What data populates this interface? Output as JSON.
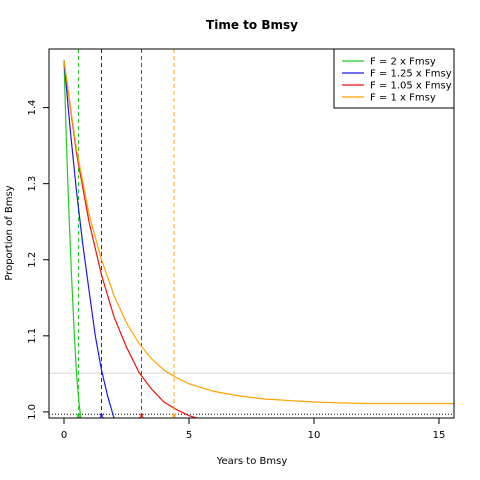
{
  "chart_data": {
    "type": "line",
    "title": "Time to Bmsy",
    "xlabel": "Years to Bmsy",
    "ylabel": "Proportion of Bmsy",
    "xlim": [
      -0.6,
      15.6
    ],
    "ylim": [
      0.992,
      1.477
    ],
    "x_ticks": [
      0,
      5,
      10,
      15
    ],
    "x_tick_labels": [
      "0",
      "5",
      "10",
      "15"
    ],
    "y_ticks": [
      1.0,
      1.1,
      1.2,
      1.3,
      1.4
    ],
    "y_tick_labels": [
      "1.0",
      "1.1",
      "1.2",
      "1.3",
      "1.4"
    ],
    "grid": false,
    "legend_position": "top-right",
    "series": [
      {
        "name": "F = 2 x Fmsy",
        "color": "#22cc22",
        "x": [
          0,
          0.1,
          0.2,
          0.3,
          0.4,
          0.5,
          0.6,
          0.67
        ],
        "y": [
          1.462,
          1.35,
          1.26,
          1.18,
          1.11,
          1.05,
          1.012,
          0.992
        ],
        "marker_x": 0.58
      },
      {
        "name": "F = 1.25 x Fmsy",
        "color": "#1a1aee",
        "x": [
          0,
          0.25,
          0.5,
          0.75,
          1.0,
          1.25,
          1.5,
          1.75,
          2.0
        ],
        "y": [
          1.462,
          1.37,
          1.29,
          1.22,
          1.16,
          1.1,
          1.055,
          1.02,
          0.992
        ],
        "marker_x": 1.5
      },
      {
        "name": "F = 1.05 x Fmsy",
        "color": "#ee1111",
        "x": [
          0,
          0.5,
          1.0,
          1.5,
          2.0,
          2.5,
          3.0,
          3.5,
          4.0,
          4.5,
          5.0,
          5.3
        ],
        "y": [
          1.462,
          1.34,
          1.25,
          1.18,
          1.125,
          1.085,
          1.052,
          1.03,
          1.013,
          1.003,
          0.995,
          0.992
        ],
        "marker_x": 3.1
      },
      {
        "name": "F = 1 x Fmsy",
        "color": "#ffa500",
        "x": [
          0,
          0.5,
          1,
          1.5,
          2,
          2.5,
          3,
          3.5,
          4,
          4.5,
          5,
          6,
          7,
          8,
          9,
          10,
          11,
          12,
          13,
          14,
          15,
          15.6
        ],
        "y": [
          1.462,
          1.345,
          1.26,
          1.2,
          1.153,
          1.117,
          1.09,
          1.07,
          1.055,
          1.045,
          1.037,
          1.027,
          1.021,
          1.017,
          1.015,
          1.013,
          1.012,
          1.011,
          1.011,
          1.011,
          1.011,
          1.011
        ],
        "marker_x": 4.4
      }
    ],
    "reference_lines": {
      "dotted_black_y": 0.997,
      "solid_grey_y": 1.051
    }
  }
}
